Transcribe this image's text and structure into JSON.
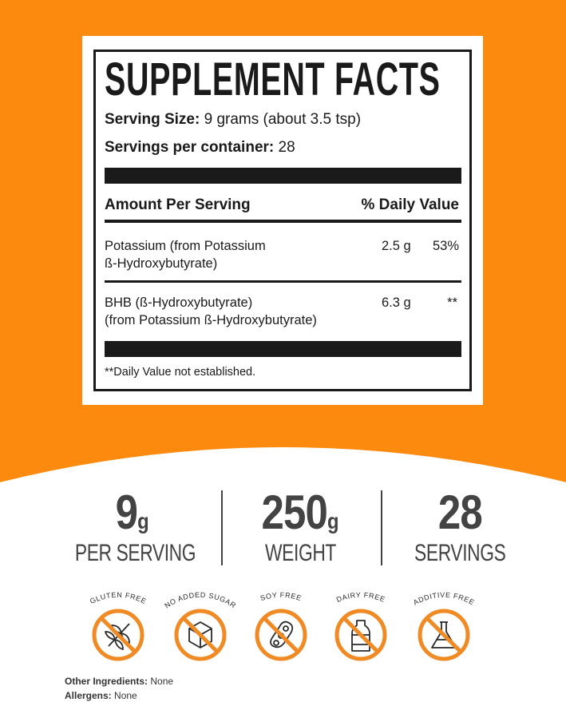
{
  "colors": {
    "orange": "#fb8a0e",
    "text": "#1a1a1a",
    "stat_text": "#434343"
  },
  "facts": {
    "title": "SUPPLEMENT FACTS",
    "serving_size_label": "Serving Size:",
    "serving_size_value": "9 grams (about 3.5 tsp)",
    "servings_label": "Servings per container:",
    "servings_value": "28",
    "amount_header": "Amount Per Serving",
    "dv_header": "% Daily Value",
    "rows": [
      {
        "name_line1": "Potassium (from Potassium",
        "name_line2": "ß-Hydroxybutyrate)",
        "amount": "2.5 g",
        "dv": "53%"
      },
      {
        "name_line1": "BHB (ß-Hydroxybutyrate)",
        "name_line2": "(from Potassium ß-Hydroxybutyrate)",
        "amount": "6.3 g",
        "dv": "**"
      }
    ],
    "footnote": "**Daily Value not established."
  },
  "stats": [
    {
      "value": "9",
      "unit": "g",
      "label": "PER SERVING"
    },
    {
      "value": "250",
      "unit": "g",
      "label": "WEIGHT"
    },
    {
      "value": "28",
      "unit": "",
      "label": "SERVINGS"
    }
  ],
  "badges": [
    {
      "label": "GLUTEN FREE",
      "icon": "wheat-icon"
    },
    {
      "label": "NO ADDED SUGAR",
      "icon": "sugar-cube-icon"
    },
    {
      "label": "SOY FREE",
      "icon": "soybean-icon"
    },
    {
      "label": "DAIRY FREE",
      "icon": "milk-bottle-icon"
    },
    {
      "label": "ADDITIVE FREE",
      "icon": "flask-icon"
    }
  ],
  "ingredients": {
    "other_label": "Other Ingredients:",
    "other_value": "None",
    "allergens_label": "Allergens:",
    "allergens_value": "None"
  }
}
